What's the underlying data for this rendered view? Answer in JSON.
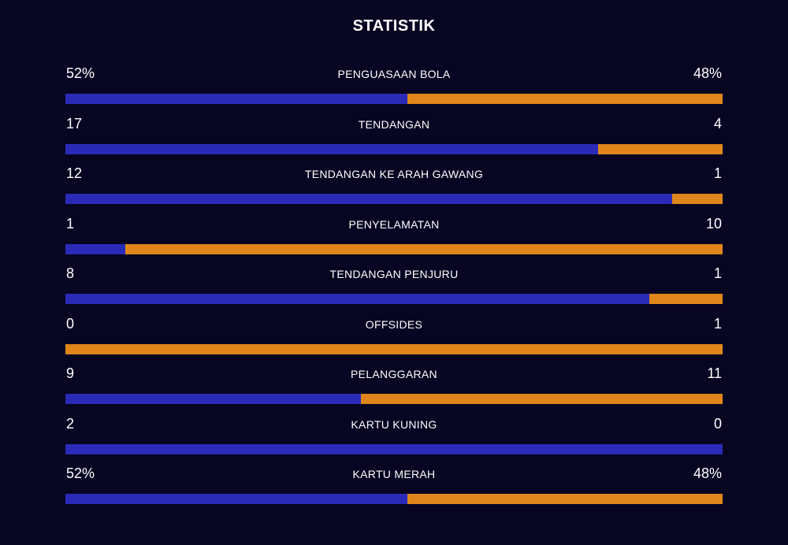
{
  "title": "STATISTIK",
  "colors": {
    "background": "#070522",
    "home": "#2a2ab8",
    "away": "#e0861b"
  },
  "stats": [
    {
      "label": "PENGUASAAN BOLA",
      "home": "52%",
      "away": "48%",
      "home_share": 0.52
    },
    {
      "label": "TENDANGAN",
      "home": "17",
      "away": "4",
      "home_share": 0.81
    },
    {
      "label": "TENDANGAN KE ARAH GAWANG",
      "home": "12",
      "away": "1",
      "home_share": 0.923
    },
    {
      "label": "PENYELAMATAN",
      "home": "1",
      "away": "10",
      "home_share": 0.091
    },
    {
      "label": "TENDANGAN PENJURU",
      "home": "8",
      "away": "1",
      "home_share": 0.889
    },
    {
      "label": "OFFSIDES",
      "home": "0",
      "away": "1",
      "home_share": 0.0
    },
    {
      "label": "PELANGGARAN",
      "home": "9",
      "away": "11",
      "home_share": 0.45
    },
    {
      "label": "KARTU KUNING",
      "home": "2",
      "away": "0",
      "home_share": 1.0
    },
    {
      "label": "KARTU MERAH",
      "home": "52%",
      "away": "48%",
      "home_share": 0.52
    }
  ]
}
